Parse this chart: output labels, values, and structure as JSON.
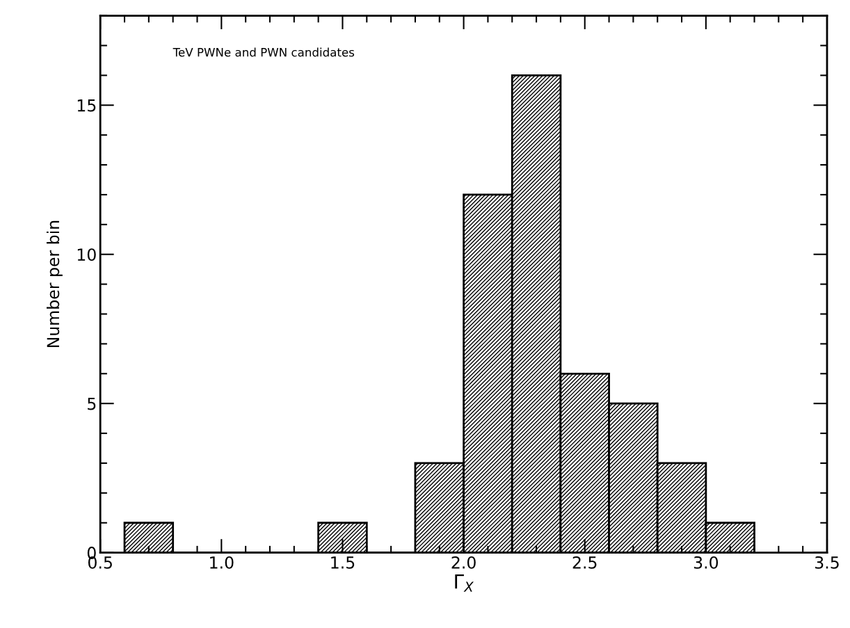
{
  "chart_data": {
    "type": "histogram",
    "bins": [
      0.6,
      0.8,
      1.0,
      1.2,
      1.4,
      1.6,
      1.8,
      2.0,
      2.2,
      2.4,
      2.6,
      2.8,
      3.0,
      3.2
    ],
    "values": [
      1,
      0,
      0,
      0,
      1,
      0,
      3,
      12,
      16,
      6,
      5,
      3,
      1
    ],
    "color": "#000000",
    "xlabel": "Γ$_{X}$",
    "ylabel": "Number per bin",
    "annotations": [
      "TeV PWNe and PWN candidates"
    ],
    "xlim": [
      0.5,
      3.5
    ],
    "xticks": [
      {
        "value": 0.5,
        "label": "0.5"
      },
      {
        "value": 1.0,
        "label": "1.0"
      },
      {
        "value": 1.5,
        "label": "1.5"
      },
      {
        "value": 2.0,
        "label": "2.0"
      },
      {
        "value": 2.5,
        "label": "2.5"
      },
      {
        "value": 3.0,
        "label": "3.0"
      },
      {
        "value": 3.5,
        "label": "3.5"
      }
    ],
    "ylim": [
      0,
      18
    ],
    "yticks": [
      0,
      5,
      10,
      15
    ],
    "grid": false,
    "legend": false
  }
}
